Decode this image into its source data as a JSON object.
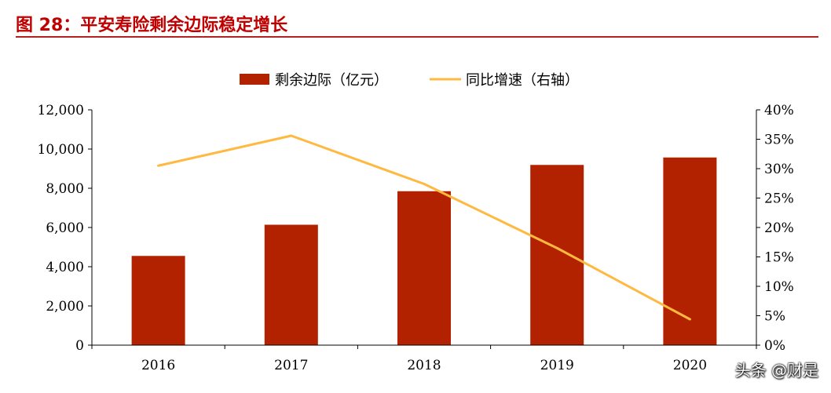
{
  "figure": {
    "title": "图 28：平安寿险剩余边际稳定增长"
  },
  "watermark": "头条 @财是",
  "colors": {
    "title": "#C00000",
    "bar": "#B22200",
    "line": "#FFB940",
    "axis": "#000000"
  },
  "chart_data": {
    "type": "bar",
    "categories": [
      "2016",
      "2017",
      "2018",
      "2019",
      "2020"
    ],
    "series": [
      {
        "name": "剩余边际（亿元）",
        "type": "bar",
        "axis": "left",
        "values": [
          4550,
          6140,
          7850,
          9190,
          9570
        ]
      },
      {
        "name": "同比增速（右轴）",
        "type": "line",
        "axis": "right",
        "values": [
          0.305,
          0.356,
          0.274,
          0.165,
          0.044
        ]
      }
    ],
    "y_left": {
      "lim": [
        0,
        12000
      ],
      "ticks": [
        "0",
        "2,000",
        "4,000",
        "6,000",
        "8,000",
        "10,000",
        "12,000"
      ]
    },
    "y_right": {
      "lim": [
        0,
        0.4
      ],
      "ticks": [
        "0%",
        "5%",
        "10%",
        "15%",
        "20%",
        "25%",
        "30%",
        "35%",
        "40%"
      ]
    },
    "legend_position": "top-center",
    "grid": false
  }
}
